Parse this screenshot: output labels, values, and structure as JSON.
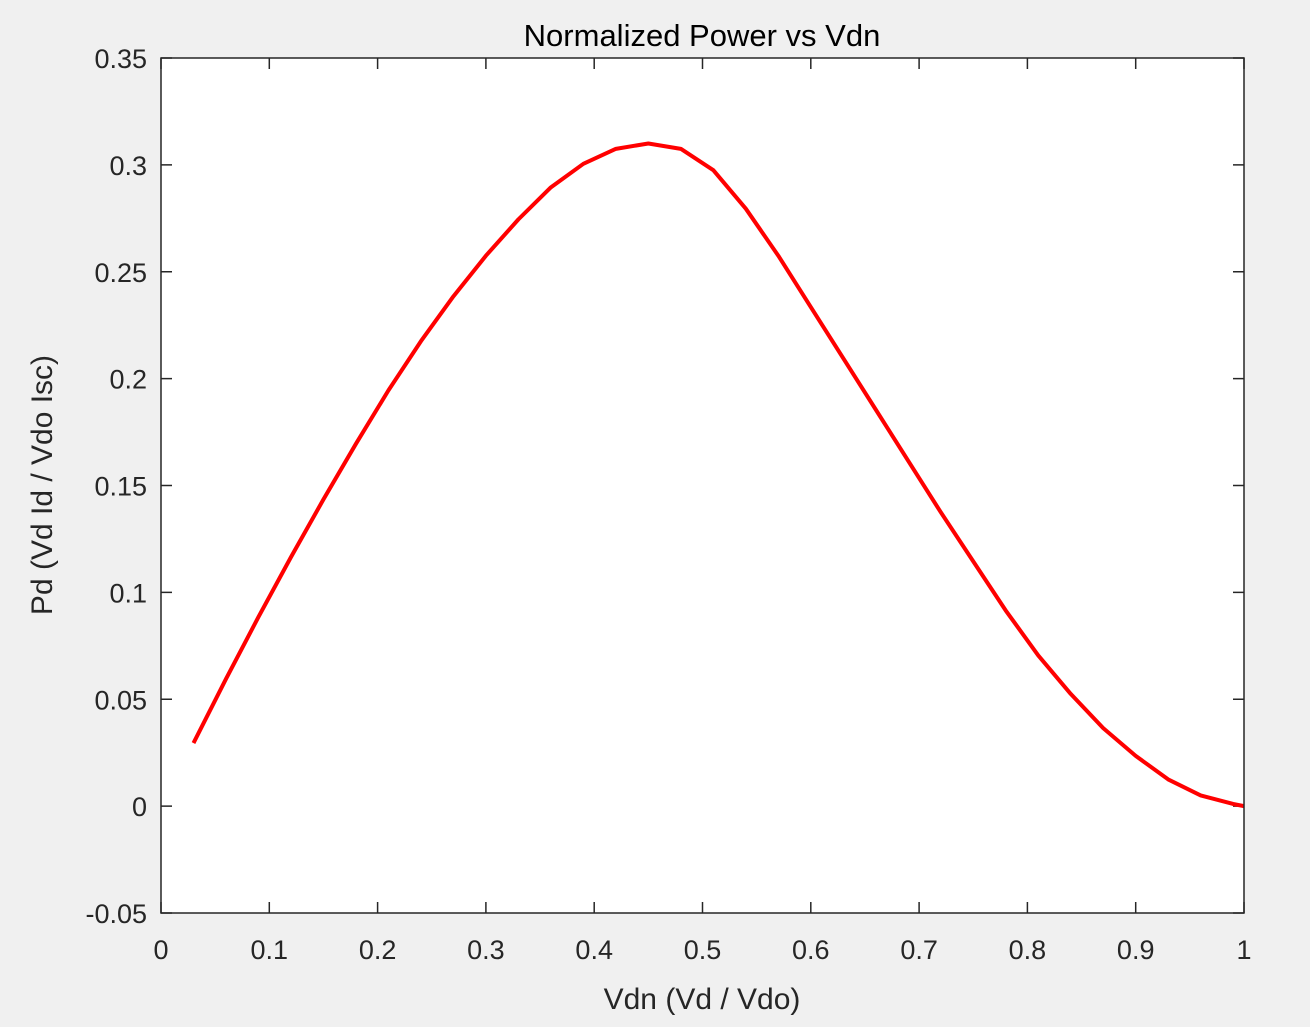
{
  "chart_data": {
    "type": "line",
    "title": "Normalized Power vs Vdn",
    "xlabel": "Vdn (Vd / Vdo)",
    "ylabel": "Pd (Vd Id / Vdo Isc)",
    "xlim": [
      0,
      1
    ],
    "ylim": [
      -0.05,
      0.35
    ],
    "xticks": [
      0,
      0.1,
      0.2,
      0.3,
      0.4,
      0.5,
      0.6,
      0.7,
      0.8,
      0.9,
      1
    ],
    "xtick_labels": [
      "0",
      "0.1",
      "0.2",
      "0.3",
      "0.4",
      "0.5",
      "0.6",
      "0.7",
      "0.8",
      "0.9",
      "1"
    ],
    "yticks": [
      -0.05,
      0,
      0.05,
      0.1,
      0.15,
      0.2,
      0.25,
      0.3,
      0.35
    ],
    "ytick_labels": [
      "-0.05",
      "0",
      "0.05",
      "0.1",
      "0.15",
      "0.2",
      "0.25",
      "0.3",
      "0.35"
    ],
    "grid": false,
    "series": [
      {
        "color": "#ff0000",
        "x": [
          0.03,
          0.06,
          0.09,
          0.12,
          0.15,
          0.18,
          0.21,
          0.24,
          0.27,
          0.3,
          0.33,
          0.36,
          0.39,
          0.42,
          0.45,
          0.48,
          0.51,
          0.54,
          0.57,
          0.6,
          0.63,
          0.66,
          0.69,
          0.72,
          0.75,
          0.78,
          0.81,
          0.84,
          0.87,
          0.9,
          0.93,
          0.96,
          0.99,
          1.0
        ],
        "y": [
          0.0295,
          0.0595,
          0.0885,
          0.1165,
          0.1435,
          0.1695,
          0.1945,
          0.2175,
          0.2385,
          0.2575,
          0.2745,
          0.2895,
          0.3005,
          0.3075,
          0.31,
          0.3075,
          0.2975,
          0.2795,
          0.2575,
          0.2335,
          0.2095,
          0.1855,
          0.1615,
          0.1375,
          0.1145,
          0.0915,
          0.0705,
          0.0525,
          0.0365,
          0.0235,
          0.0125,
          0.005,
          0.001,
          0.0
        ]
      }
    ]
  }
}
